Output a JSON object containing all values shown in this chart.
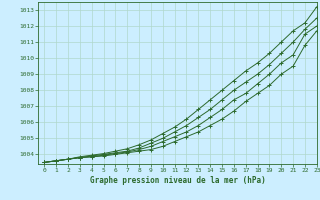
{
  "title": "Graphe pression niveau de la mer (hPa)",
  "bg_color": "#cceeff",
  "grid_color": "#b0d8cc",
  "line_color": "#2d6a2d",
  "xlim": [
    -0.5,
    23
  ],
  "ylim": [
    1003.4,
    1013.5
  ],
  "yticks": [
    1004,
    1005,
    1006,
    1007,
    1008,
    1009,
    1010,
    1011,
    1012,
    1013
  ],
  "xticks": [
    0,
    1,
    2,
    3,
    4,
    5,
    6,
    7,
    8,
    9,
    10,
    11,
    12,
    13,
    14,
    15,
    16,
    17,
    18,
    19,
    20,
    21,
    22,
    23
  ],
  "series": [
    [
      1003.5,
      1003.6,
      1003.7,
      1003.8,
      1003.85,
      1003.9,
      1004.0,
      1004.1,
      1004.2,
      1004.3,
      1004.5,
      1004.8,
      1005.1,
      1005.4,
      1005.8,
      1006.2,
      1006.7,
      1007.3,
      1007.8,
      1008.3,
      1009.0,
      1009.5,
      1010.8,
      1011.7
    ],
    [
      1003.5,
      1003.6,
      1003.7,
      1003.8,
      1003.85,
      1003.95,
      1004.05,
      1004.15,
      1004.3,
      1004.5,
      1004.8,
      1005.1,
      1005.4,
      1005.8,
      1006.3,
      1006.8,
      1007.4,
      1007.8,
      1008.4,
      1009.0,
      1009.7,
      1010.2,
      1011.5,
      1012.0
    ],
    [
      1003.5,
      1003.6,
      1003.7,
      1003.8,
      1003.9,
      1004.0,
      1004.1,
      1004.2,
      1004.4,
      1004.7,
      1005.0,
      1005.4,
      1005.8,
      1006.3,
      1006.8,
      1007.4,
      1008.0,
      1008.5,
      1009.0,
      1009.6,
      1010.3,
      1011.0,
      1011.8,
      1012.5
    ],
    [
      1003.5,
      1003.6,
      1003.7,
      1003.85,
      1003.95,
      1004.05,
      1004.2,
      1004.35,
      1004.6,
      1004.9,
      1005.3,
      1005.7,
      1006.2,
      1006.8,
      1007.4,
      1008.0,
      1008.6,
      1009.2,
      1009.7,
      1010.3,
      1011.0,
      1011.7,
      1012.2,
      1013.2
    ]
  ]
}
